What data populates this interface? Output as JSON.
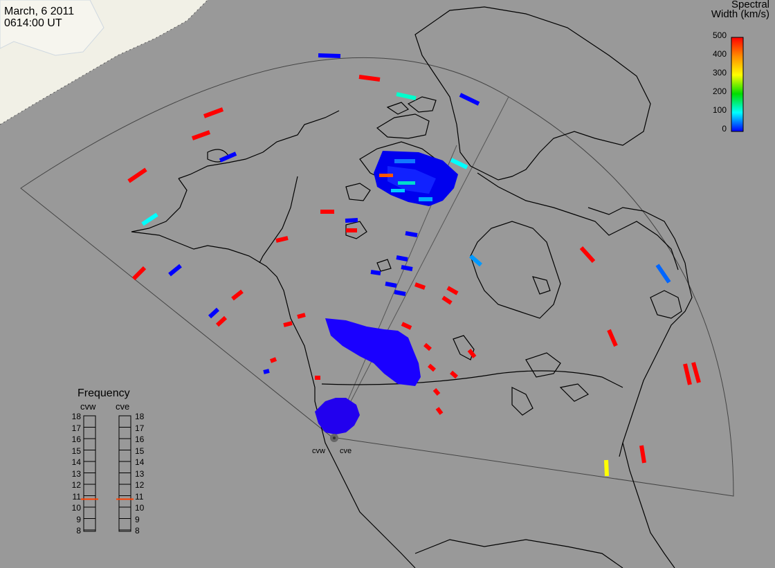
{
  "header": {
    "date": "March, 6 2011",
    "time": "0614:00 UT"
  },
  "colorbar": {
    "title_line1": "Spectral",
    "title_line2": "Width (km/s)",
    "ticks": [
      "500",
      "400",
      "300",
      "200",
      "100",
      "0"
    ],
    "stops": [
      "#ff0000",
      "#ff8c00",
      "#ffff00",
      "#00dd00",
      "#00ffff",
      "#0000ff"
    ]
  },
  "frequency": {
    "title": "Frequency",
    "left_label": "cvw",
    "right_label": "cve",
    "values": [
      "18",
      "17",
      "16",
      "15",
      "14",
      "13",
      "12",
      "11",
      "10",
      "9",
      "8"
    ],
    "cvw_mhz": 10.7,
    "cve_mhz": 10.7,
    "marker_color": "#ff4000"
  },
  "radars": {
    "west": "cvw",
    "east": "cve"
  },
  "colors": {
    "background": "#999999",
    "daylight": "#f2f2e8",
    "land_line": "#000000",
    "fov_line": "#444444"
  }
}
